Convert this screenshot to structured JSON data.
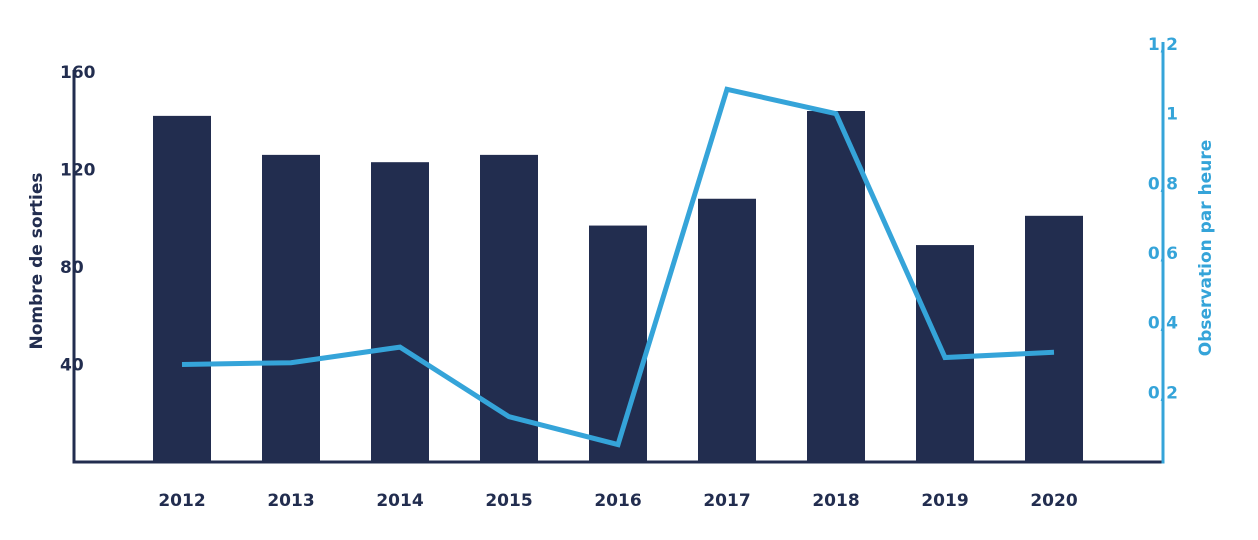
{
  "chart_data": {
    "type": "bar",
    "categories": [
      "2012",
      "2013",
      "2014",
      "2015",
      "2016",
      "2017",
      "2018",
      "2019",
      "2020"
    ],
    "series": [
      {
        "type": "bar",
        "axis": "left",
        "values": [
          142,
          126,
          123,
          126,
          97,
          108,
          144,
          89,
          101
        ]
      },
      {
        "type": "line",
        "axis": "right",
        "values": [
          0.28,
          0.285,
          0.33,
          0.13,
          0.05,
          1.07,
          1.0,
          0.3,
          0.315
        ]
      }
    ],
    "ylabel": "Nombre de sorties",
    "y2label": "Observation par heure",
    "ylim": [
      0,
      160
    ],
    "y2lim": [
      0,
      1.2
    ],
    "yticks": [
      "40",
      "80",
      "120",
      "160"
    ],
    "y2ticks": [
      "0,2",
      "0,4",
      "0,6",
      "0,8",
      "1",
      "1,2"
    ],
    "grid": false,
    "colors": {
      "bars": "#222d4f",
      "line": "#35a4d9",
      "left_axis": "#222d4f",
      "right_axis": "#35a4d9"
    }
  }
}
